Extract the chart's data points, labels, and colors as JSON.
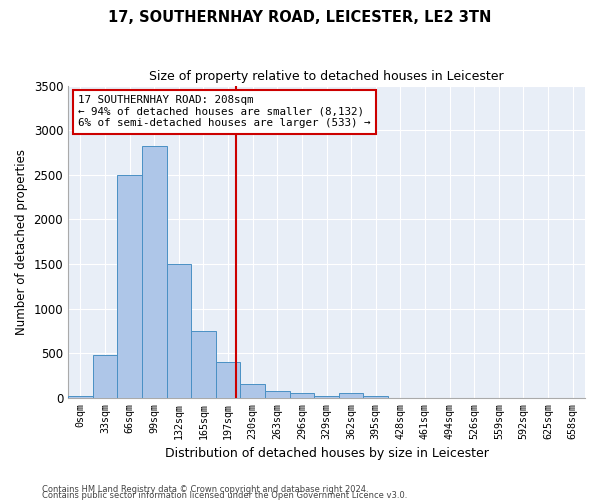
{
  "title": "17, SOUTHERNHAY ROAD, LEICESTER, LE2 3TN",
  "subtitle": "Size of property relative to detached houses in Leicester",
  "xlabel": "Distribution of detached houses by size in Leicester",
  "ylabel": "Number of detached properties",
  "bin_labels": [
    "0sqm",
    "33sqm",
    "66sqm",
    "99sqm",
    "132sqm",
    "165sqm",
    "197sqm",
    "230sqm",
    "263sqm",
    "296sqm",
    "329sqm",
    "362sqm",
    "395sqm",
    "428sqm",
    "461sqm",
    "494sqm",
    "526sqm",
    "559sqm",
    "592sqm",
    "625sqm",
    "658sqm"
  ],
  "bar_values": [
    25,
    480,
    2500,
    2820,
    1500,
    750,
    400,
    150,
    80,
    50,
    25,
    50,
    25,
    0,
    0,
    0,
    0,
    0,
    0,
    0,
    0
  ],
  "bar_color": "#aec6e8",
  "bar_edge_color": "#4a90c4",
  "vline_color": "#cc0000",
  "annotation_text": "17 SOUTHERNHAY ROAD: 208sqm\n← 94% of detached houses are smaller (8,132)\n6% of semi-detached houses are larger (533) →",
  "annotation_box_color": "#cc0000",
  "ylim": [
    0,
    3500
  ],
  "yticks": [
    0,
    500,
    1000,
    1500,
    2000,
    2500,
    3000,
    3500
  ],
  "background_color": "#e8eef7",
  "footer_line1": "Contains HM Land Registry data © Crown copyright and database right 2024.",
  "footer_line2": "Contains public sector information licensed under the Open Government Licence v3.0."
}
